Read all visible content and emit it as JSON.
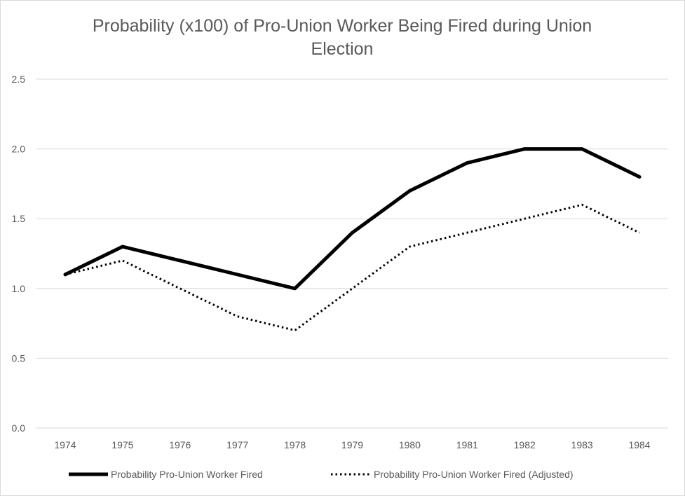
{
  "chart_data": {
    "type": "line",
    "title_lines": [
      "Probability (x100) of Pro-Union Worker Being Fired during Union",
      "Election"
    ],
    "xlabel": "",
    "ylabel": "",
    "x": [
      "1974",
      "1975",
      "1976",
      "1977",
      "1978",
      "1979",
      "1980",
      "1981",
      "1982",
      "1983",
      "1984"
    ],
    "ylim": [
      0,
      2.5
    ],
    "yticks": [
      "0.0",
      "0.5",
      "1.0",
      "1.5",
      "2.0",
      "2.5"
    ],
    "ytick_values": [
      0,
      0.5,
      1.0,
      1.5,
      2.0,
      2.5
    ],
    "grid": true,
    "legend_position": "bottom",
    "series": [
      {
        "name": "Probability Pro-Union Worker Fired",
        "style": "solid",
        "color": "#000000",
        "values": [
          1.1,
          1.3,
          1.2,
          1.1,
          1.0,
          1.4,
          1.7,
          1.9,
          2.0,
          2.0,
          1.8
        ]
      },
      {
        "name": "Probability Pro-Union Worker Fired (Adjusted)",
        "style": "dotted",
        "color": "#000000",
        "values": [
          1.1,
          1.2,
          1.0,
          0.8,
          0.7,
          1.0,
          1.3,
          1.4,
          1.5,
          1.6,
          1.4
        ]
      }
    ]
  }
}
